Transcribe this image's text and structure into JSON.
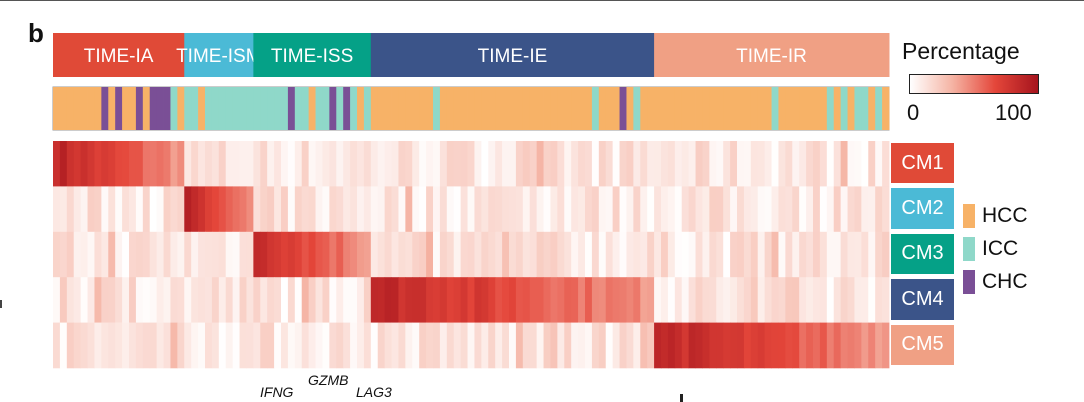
{
  "panel_letter": "b",
  "chart_data": {
    "type": "heatmap",
    "title": "",
    "groups": [
      {
        "name": "TIME-IA",
        "color": "#e04a37",
        "columns": 19
      },
      {
        "name": "TIME-ISM",
        "color": "#4bbad6",
        "columns": 10
      },
      {
        "name": "TIME-ISS",
        "color": "#05a187",
        "columns": 17
      },
      {
        "name": "TIME-IE",
        "color": "#3b5489",
        "columns": 41
      },
      {
        "name": "TIME-IR",
        "color": "#f0a084",
        "columns": 34
      }
    ],
    "modules": [
      {
        "name": "CM1",
        "color": "#e04a37",
        "high_group": "TIME-IA"
      },
      {
        "name": "CM2",
        "color": "#4bbad6",
        "high_group": "TIME-ISM"
      },
      {
        "name": "CM3",
        "color": "#05a187",
        "high_group": "TIME-ISS"
      },
      {
        "name": "CM4",
        "color": "#3b5489",
        "high_group": "TIME-IE"
      },
      {
        "name": "CM5",
        "color": "#f0a084",
        "high_group": "TIME-IR"
      }
    ],
    "legend": {
      "title": "Percentage",
      "min_label": "0",
      "max_label": "100",
      "range": [
        0,
        100
      ],
      "colors": [
        "#ffffff",
        "#f5b3a3",
        "#e4463a",
        "#a5141d"
      ]
    },
    "annotation_legend": [
      {
        "name": "HCC",
        "color": "#f7b267"
      },
      {
        "name": "ICC",
        "color": "#8fd8c9"
      },
      {
        "name": "CHC",
        "color": "#7a4f96"
      }
    ],
    "cancer_type_track": [
      "HCC",
      "HCC",
      "HCC",
      "HCC",
      "HCC",
      "HCC",
      "HCC",
      "CHC",
      "HCC",
      "CHC",
      "HCC",
      "HCC",
      "CHC",
      "HCC",
      "CHC",
      "CHC",
      "CHC",
      "ICC",
      "HCC",
      "ICC",
      "ICC",
      "HCC",
      "ICC",
      "ICC",
      "ICC",
      "ICC",
      "ICC",
      "ICC",
      "ICC",
      "ICC",
      "ICC",
      "ICC",
      "ICC",
      "ICC",
      "CHC",
      "ICC",
      "ICC",
      "HCC",
      "ICC",
      "ICC",
      "CHC",
      "ICC",
      "CHC",
      "ICC",
      "HCC",
      "ICC",
      "HCC",
      "HCC",
      "HCC",
      "HCC",
      "HCC",
      "HCC",
      "HCC",
      "HCC",
      "HCC",
      "ICC",
      "HCC",
      "HCC",
      "HCC",
      "HCC",
      "HCC",
      "HCC",
      "HCC",
      "HCC",
      "HCC",
      "HCC",
      "HCC",
      "HCC",
      "HCC",
      "HCC",
      "HCC",
      "HCC",
      "HCC",
      "HCC",
      "HCC",
      "HCC",
      "HCC",
      "HCC",
      "ICC",
      "HCC",
      "HCC",
      "HCC",
      "CHC",
      "HCC",
      "ICC",
      "HCC",
      "HCC",
      "HCC",
      "HCC",
      "HCC",
      "HCC",
      "HCC",
      "HCC",
      "HCC",
      "HCC",
      "HCC",
      "HCC",
      "HCC",
      "HCC",
      "HCC",
      "HCC",
      "HCC",
      "HCC",
      "HCC",
      "ICC",
      "HCC",
      "HCC",
      "HCC",
      "HCC",
      "HCC",
      "HCC",
      "HCC",
      "ICC",
      "HCC",
      "ICC",
      "HCC",
      "ICC",
      "ICC",
      "HCC",
      "ICC",
      "HCC"
    ],
    "gene_labels": [
      "IFNG",
      "GZMB",
      "LAG3"
    ]
  }
}
